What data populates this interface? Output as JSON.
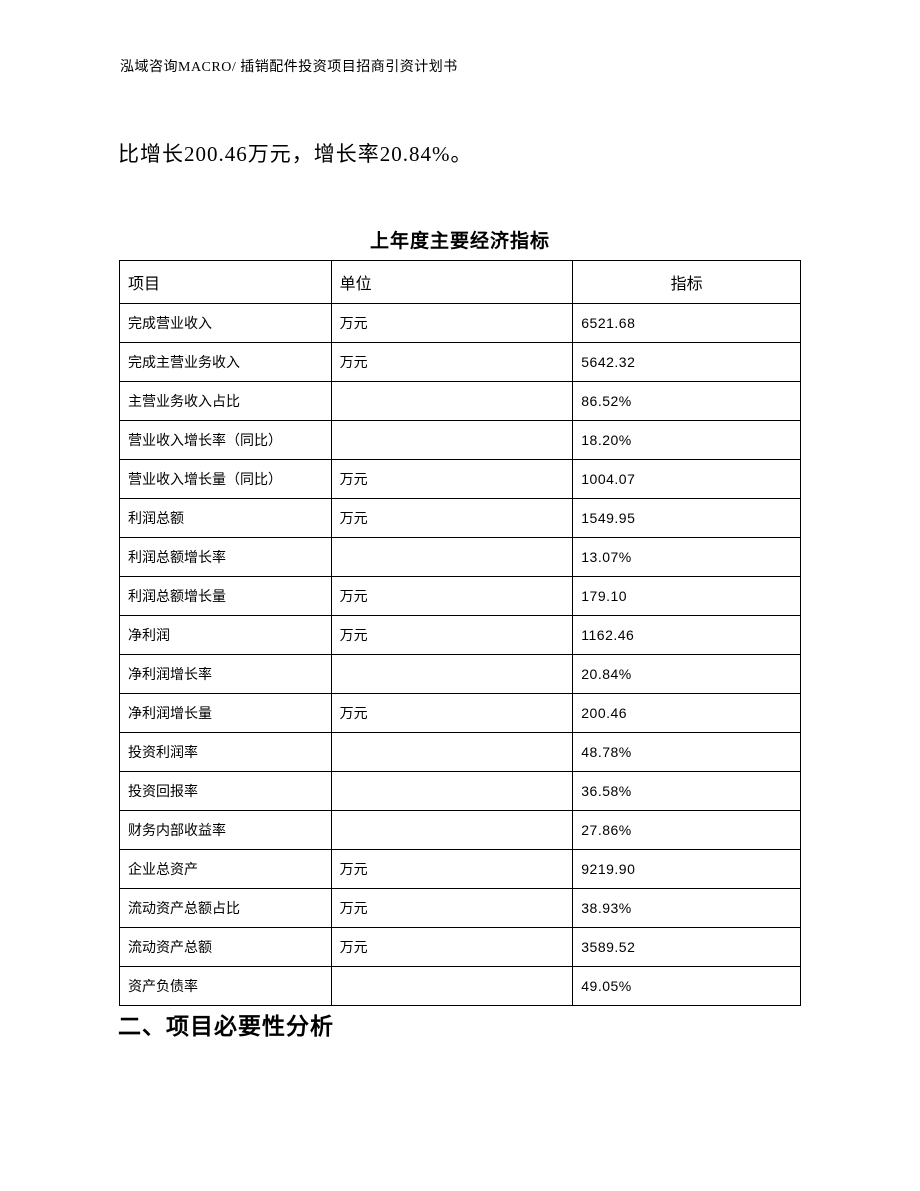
{
  "header": {
    "text": "泓域咨询MACRO/ 插销配件投资项目招商引资计划书"
  },
  "body_text": "比增长200.46万元，增长率20.84%。",
  "table": {
    "title": "上年度主要经济指标",
    "columns": [
      "项目",
      "单位",
      "指标"
    ],
    "rows": [
      {
        "project": "完成营业收入",
        "unit": "万元",
        "value": "6521.68"
      },
      {
        "project": "完成主营业务收入",
        "unit": "万元",
        "value": "5642.32"
      },
      {
        "project": "主营业务收入占比",
        "unit": "",
        "value": "86.52%"
      },
      {
        "project": "营业收入增长率（同比）",
        "unit": "",
        "value": "18.20%"
      },
      {
        "project": "营业收入增长量（同比）",
        "unit": "万元",
        "value": "1004.07"
      },
      {
        "project": "利润总额",
        "unit": "万元",
        "value": "1549.95"
      },
      {
        "project": "利润总额增长率",
        "unit": "",
        "value": "13.07%"
      },
      {
        "project": "利润总额增长量",
        "unit": "万元",
        "value": "179.10"
      },
      {
        "project": "净利润",
        "unit": "万元",
        "value": "1162.46"
      },
      {
        "project": "净利润增长率",
        "unit": "",
        "value": "20.84%"
      },
      {
        "project": "净利润增长量",
        "unit": "万元",
        "value": "200.46"
      },
      {
        "project": "投资利润率",
        "unit": "",
        "value": "48.78%"
      },
      {
        "project": "投资回报率",
        "unit": "",
        "value": "36.58%"
      },
      {
        "project": "财务内部收益率",
        "unit": "",
        "value": "27.86%"
      },
      {
        "project": "企业总资产",
        "unit": "万元",
        "value": "9219.90"
      },
      {
        "project": "流动资产总额占比",
        "unit": "万元",
        "value": "38.93%"
      },
      {
        "project": "流动资产总额",
        "unit": "万元",
        "value": "3589.52"
      },
      {
        "project": "资产负债率",
        "unit": "",
        "value": "49.05%"
      }
    ]
  },
  "section_heading": "二、项目必要性分析"
}
